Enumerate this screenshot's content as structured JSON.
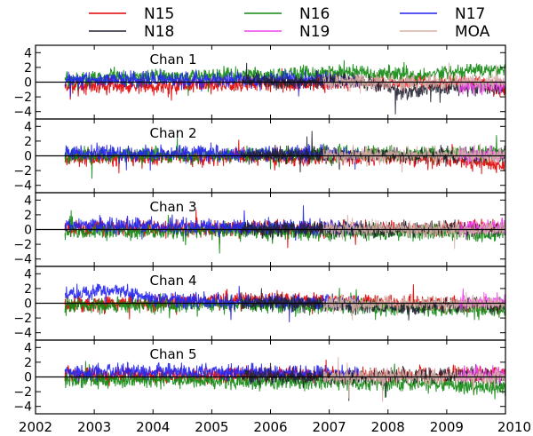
{
  "chart_data": {
    "type": "line",
    "legend": {
      "placement": "top",
      "entries": [
        {
          "name": "N15",
          "color": "#e00000"
        },
        {
          "name": "N16",
          "color": "#118811"
        },
        {
          "name": "N17",
          "color": "#2222ee"
        },
        {
          "name": "N18",
          "color": "#222233"
        },
        {
          "name": "N19",
          "color": "#ee44ee"
        },
        {
          "name": "MOA",
          "color": "#d8b0a8"
        }
      ]
    },
    "xlim": [
      2002,
      2010
    ],
    "xticks": [
      "2002",
      "2003",
      "2004",
      "2005",
      "2006",
      "2007",
      "2008",
      "2009",
      "2010"
    ],
    "ylim": [
      -5,
      5
    ],
    "yticks": [
      "4",
      "2",
      "0",
      "−2",
      "−4"
    ],
    "grid": false,
    "zero_line": true,
    "panels": [
      {
        "title": "Chan 1",
        "series": [
          {
            "name": "N15",
            "x": [
              2002.5,
              2003.0,
              2004.0,
              2005.0,
              2006.0,
              2007.0,
              2007.5,
              2008.0,
              2008.5,
              2009.0,
              2009.5,
              2010.0
            ],
            "y": [
              -0.6,
              -0.5,
              -0.5,
              -0.3,
              -0.2,
              -0.2,
              0.0,
              -0.1,
              -0.1,
              -0.1,
              0.0,
              -1.2
            ]
          },
          {
            "name": "N16",
            "x": [
              2002.5,
              2003.0,
              2004.0,
              2005.0,
              2006.0,
              2007.0,
              2007.5,
              2008.0,
              2008.5,
              2009.0,
              2009.5,
              2010.0
            ],
            "y": [
              0.3,
              0.5,
              0.7,
              0.9,
              1.0,
              1.2,
              1.3,
              1.2,
              0.9,
              1.2,
              1.6,
              1.7
            ]
          },
          {
            "name": "N17",
            "x": [
              2002.5,
              2003.0,
              2004.0,
              2005.0,
              2006.0,
              2007.0,
              2007.5
            ],
            "y": [
              0.3,
              0.4,
              0.3,
              0.4,
              0.3,
              0.3,
              0.2
            ]
          },
          {
            "name": "N18",
            "x": [
              2005.5,
              2006.0,
              2007.0,
              2007.5,
              2008.0,
              2008.3,
              2008.6,
              2009.0,
              2009.5,
              2010.0
            ],
            "y": [
              0.2,
              0.1,
              0.2,
              0.0,
              -0.6,
              -1.5,
              -1.0,
              -0.6,
              -0.8,
              -0.6
            ]
          },
          {
            "name": "N19",
            "x": [
              2009.2,
              2009.5,
              2010.0
            ],
            "y": [
              -0.4,
              -0.6,
              -0.5
            ]
          },
          {
            "name": "MOA",
            "x": [
              2006.9,
              2007.5,
              2008.0,
              2008.5,
              2009.0,
              2010.0
            ],
            "y": [
              0.0,
              0.1,
              0.0,
              -0.1,
              0.0,
              0.1
            ]
          }
        ]
      },
      {
        "title": "Chan 2",
        "series": [
          {
            "name": "N15",
            "x": [
              2002.5,
              2003.0,
              2004.0,
              2005.0,
              2006.0,
              2007.0,
              2008.0,
              2009.0,
              2009.5,
              2010.0
            ],
            "y": [
              -0.3,
              -0.3,
              -0.2,
              -0.2,
              -0.2,
              -0.1,
              -0.2,
              -0.4,
              -0.7,
              -1.2
            ]
          },
          {
            "name": "N16",
            "x": [
              2002.5,
              2003.0,
              2004.0,
              2005.0,
              2006.0,
              2007.0,
              2008.0,
              2009.0,
              2010.0
            ],
            "y": [
              0.0,
              0.1,
              0.1,
              0.1,
              0.2,
              0.3,
              0.3,
              0.4,
              0.2
            ]
          },
          {
            "name": "N17",
            "x": [
              2002.5,
              2003.0,
              2004.0,
              2005.0,
              2006.0,
              2007.0,
              2007.5
            ],
            "y": [
              0.3,
              0.4,
              0.4,
              0.3,
              0.3,
              0.3,
              0.2
            ]
          },
          {
            "name": "N18",
            "x": [
              2005.5,
              2006.0,
              2007.0,
              2008.0,
              2009.0,
              2010.0
            ],
            "y": [
              0.1,
              0.1,
              0.1,
              0.1,
              0.0,
              0.1
            ]
          },
          {
            "name": "N19",
            "x": [
              2009.2,
              2009.5,
              2010.0
            ],
            "y": [
              0.1,
              0.2,
              0.1
            ]
          },
          {
            "name": "MOA",
            "x": [
              2006.9,
              2008.0,
              2009.0,
              2010.0
            ],
            "y": [
              0.0,
              0.1,
              0.1,
              0.0
            ]
          }
        ]
      },
      {
        "title": "Chan 3",
        "series": [
          {
            "name": "N15",
            "x": [
              2002.5,
              2003.0,
              2004.0,
              2005.0,
              2006.0,
              2007.0,
              2008.0,
              2009.0,
              2010.0
            ],
            "y": [
              0.1,
              0.2,
              0.2,
              0.1,
              0.2,
              0.1,
              0.0,
              0.1,
              0.2
            ]
          },
          {
            "name": "N16",
            "x": [
              2002.5,
              2003.0,
              2004.0,
              2005.0,
              2006.0,
              2007.0,
              2008.0,
              2009.0,
              2010.0
            ],
            "y": [
              -0.3,
              -0.2,
              -0.3,
              -0.2,
              -0.3,
              -0.3,
              -0.4,
              -0.5,
              -0.7
            ]
          },
          {
            "name": "N17",
            "x": [
              2002.5,
              2003.0,
              2004.0,
              2005.0,
              2006.0,
              2007.0,
              2007.5
            ],
            "y": [
              0.5,
              0.6,
              0.5,
              0.4,
              0.3,
              0.3,
              0.2
            ]
          },
          {
            "name": "N18",
            "x": [
              2005.5,
              2006.0,
              2007.0,
              2008.0,
              2009.0,
              2010.0
            ],
            "y": [
              0.1,
              0.0,
              0.1,
              0.0,
              0.1,
              0.0
            ]
          },
          {
            "name": "N19",
            "x": [
              2009.2,
              2009.5,
              2010.0
            ],
            "y": [
              0.2,
              0.3,
              0.2
            ]
          },
          {
            "name": "MOA",
            "x": [
              2006.9,
              2008.0,
              2009.0,
              2010.0
            ],
            "y": [
              0.0,
              0.1,
              0.0,
              0.1
            ]
          }
        ]
      },
      {
        "title": "Chan 4",
        "series": [
          {
            "name": "N15",
            "x": [
              2002.5,
              2003.0,
              2004.0,
              2005.0,
              2006.0,
              2007.0,
              2008.0,
              2009.0,
              2010.0
            ],
            "y": [
              -0.2,
              -0.1,
              0.1,
              0.3,
              0.4,
              0.3,
              0.1,
              -0.1,
              -0.4
            ]
          },
          {
            "name": "N16",
            "x": [
              2002.5,
              2003.0,
              2004.0,
              2005.0,
              2006.0,
              2007.0,
              2008.0,
              2009.0,
              2010.0
            ],
            "y": [
              -0.3,
              -0.3,
              -0.3,
              -0.2,
              -0.3,
              -0.4,
              -0.6,
              -0.8,
              -1.0
            ]
          },
          {
            "name": "N17",
            "x": [
              2002.5,
              2003.0,
              2003.3,
              2004.0,
              2005.0,
              2006.0,
              2007.0,
              2007.5
            ],
            "y": [
              1.2,
              1.6,
              1.8,
              0.6,
              0.3,
              0.2,
              0.1,
              0.0
            ]
          },
          {
            "name": "N18",
            "x": [
              2005.5,
              2006.0,
              2007.0,
              2008.0,
              2008.5,
              2009.0,
              2010.0
            ],
            "y": [
              0.1,
              0.0,
              -0.2,
              -0.6,
              -0.5,
              -0.3,
              -0.2
            ]
          },
          {
            "name": "N19",
            "x": [
              2009.2,
              2009.5,
              2010.0
            ],
            "y": [
              0.1,
              0.3,
              0.2
            ]
          },
          {
            "name": "MOA",
            "x": [
              2006.9,
              2008.0,
              2009.0,
              2010.0
            ],
            "y": [
              0.0,
              -0.1,
              0.0,
              0.0
            ]
          }
        ]
      },
      {
        "title": "Chan 5",
        "series": [
          {
            "name": "N15",
            "x": [
              2002.5,
              2003.0,
              2004.0,
              2005.0,
              2006.0,
              2007.0,
              2008.0,
              2009.0,
              2010.0
            ],
            "y": [
              0.2,
              0.2,
              0.3,
              0.2,
              0.3,
              0.3,
              0.2,
              0.3,
              0.4
            ]
          },
          {
            "name": "N16",
            "x": [
              2002.5,
              2003.0,
              2004.0,
              2005.0,
              2006.0,
              2007.0,
              2008.0,
              2009.0,
              2009.5,
              2010.0
            ],
            "y": [
              -0.3,
              -0.4,
              -0.4,
              -0.5,
              -0.6,
              -0.7,
              -0.8,
              -1.0,
              -1.4,
              -1.3
            ]
          },
          {
            "name": "N17",
            "x": [
              2002.5,
              2003.0,
              2004.0,
              2005.0,
              2006.0,
              2007.0,
              2007.5
            ],
            "y": [
              0.6,
              0.7,
              0.8,
              0.7,
              0.6,
              0.5,
              0.4
            ]
          },
          {
            "name": "N18",
            "x": [
              2005.5,
              2006.0,
              2007.0,
              2008.0,
              2009.0,
              2010.0
            ],
            "y": [
              0.0,
              0.1,
              0.0,
              0.1,
              0.2,
              0.1
            ]
          },
          {
            "name": "N19",
            "x": [
              2009.2,
              2009.5,
              2010.0
            ],
            "y": [
              0.3,
              0.4,
              0.3
            ]
          },
          {
            "name": "MOA",
            "x": [
              2006.9,
              2008.0,
              2009.0,
              2010.0
            ],
            "y": [
              0.0,
              0.1,
              0.1,
              0.0
            ]
          }
        ]
      }
    ]
  }
}
